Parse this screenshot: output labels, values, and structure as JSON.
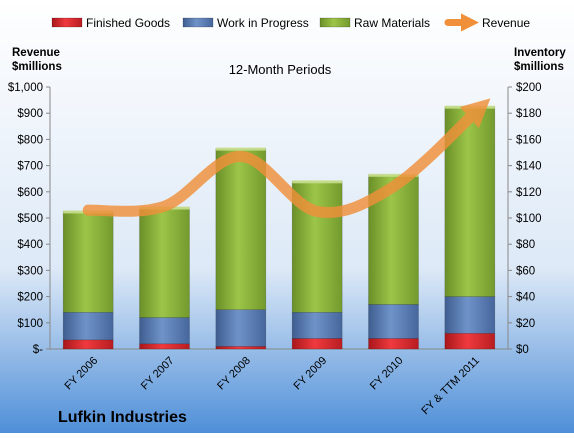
{
  "chart_data": {
    "type": "bar",
    "stacked": true,
    "subtitle": "12-Month Periods",
    "company": "Lufkin Industries",
    "left_axis": {
      "label_line1": "Revenue",
      "label_line2": "$millions",
      "range": [
        0,
        1000
      ],
      "ticks": [
        "$-",
        "$100",
        "$200",
        "$300",
        "$400",
        "$500",
        "$600",
        "$700",
        "$800",
        "$900",
        "$1,000"
      ]
    },
    "right_axis": {
      "label_line1": "Inventory",
      "label_line2": "$millions",
      "range": [
        0,
        200
      ],
      "ticks": [
        "$0",
        "$20",
        "$40",
        "$60",
        "$80",
        "$100",
        "$120",
        "$140",
        "$160",
        "$180",
        "$200"
      ]
    },
    "categories": [
      "FY 2006",
      "FY 2007",
      "FY 2008",
      "FY 2009",
      "FY 2010",
      "FY & TTM 2011"
    ],
    "series": [
      {
        "name": "Finished Goods",
        "axis": "right",
        "kind": "bar",
        "color": "#e8262b",
        "values": [
          7,
          4,
          2,
          8,
          8,
          12
        ]
      },
      {
        "name": "Work in Progress",
        "axis": "right",
        "kind": "bar",
        "color": "#5b7db5",
        "values": [
          21,
          20,
          28,
          20,
          26,
          28
        ]
      },
      {
        "name": "Raw Materials",
        "axis": "right",
        "kind": "bar",
        "color": "#8db53b",
        "values": [
          77,
          84,
          123,
          100,
          99,
          145
        ]
      },
      {
        "name": "Revenue",
        "axis": "left",
        "kind": "line",
        "color": "#f0903a",
        "values": [
          530,
          545,
          735,
          525,
          620,
          920
        ]
      }
    ],
    "legend_position": "top",
    "grid": false
  }
}
